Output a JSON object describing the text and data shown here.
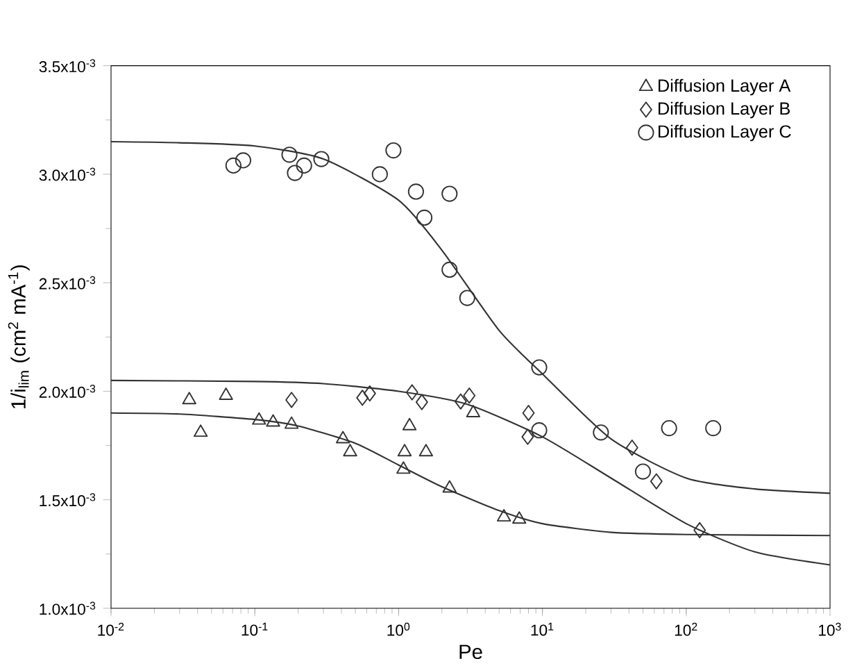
{
  "chart_data": {
    "type": "scatter",
    "xlabel": "Pe",
    "ylabel": "1/i$_{lim}$ (cm$^{2}$ mA$^{-1}$)",
    "log": "x",
    "legend": "top right",
    "xlim": [
      0.01,
      1000
    ],
    "ylim": [
      0.001,
      0.0035
    ],
    "xticks": [
      {
        "value": 0.01,
        "label": "10$^{-2}$"
      },
      {
        "value": 0.1,
        "label": "10$^{-1}$"
      },
      {
        "value": 1,
        "label": "10$^{0}$"
      },
      {
        "value": 10,
        "label": "10$^{1}$"
      },
      {
        "value": 100,
        "label": "10$^{2}$"
      },
      {
        "value": 1000,
        "label": "10$^{3}$"
      }
    ],
    "yticks": [
      {
        "value": 0.001,
        "label": "1.0x10$^{-3}$"
      },
      {
        "value": 0.0015,
        "label": "1.5x10$^{-3}$"
      },
      {
        "value": 0.002,
        "label": "2.0x10$^{-3}$"
      },
      {
        "value": 0.0025,
        "label": "2.5x10$^{-3}$"
      },
      {
        "value": 0.003,
        "label": "3.0x10$^{-3}$"
      },
      {
        "value": 0.0035,
        "label": "3.5x10$^{-3}$"
      }
    ],
    "series": [
      {
        "name": "Diffusion Layer A",
        "color": "#333333",
        "marker": "triangle",
        "x": [
          0.035,
          0.042,
          0.063,
          0.107,
          0.134,
          0.18,
          0.41,
          0.46,
          1.08,
          1.1,
          1.19,
          1.55,
          2.26,
          3.3,
          5.4,
          6.9
        ],
        "values": [
          0.00196,
          0.00181,
          0.00198,
          0.001866,
          0.001857,
          0.001847,
          0.00178,
          0.00172,
          0.00164,
          0.00172,
          0.00184,
          0.00172,
          0.001553,
          0.0019,
          0.00142,
          0.00141
        ]
      },
      {
        "name": "Diffusion Layer B",
        "color": "#333333",
        "marker": "diamond",
        "x": [
          0.18,
          0.56,
          0.63,
          1.24,
          1.45,
          2.7,
          3.1,
          8.0,
          7.9,
          42,
          62,
          124
        ],
        "values": [
          0.00196,
          0.00197,
          0.00199,
          0.001995,
          0.00195,
          0.001953,
          0.00198,
          0.0019,
          0.00179,
          0.00174,
          0.001585,
          0.00136
        ]
      },
      {
        "name": "Diffusion Layer C",
        "color": "#333333",
        "marker": "circle",
        "x": [
          0.071,
          0.083,
          0.174,
          0.19,
          0.22,
          0.29,
          0.74,
          0.92,
          1.32,
          1.51,
          2.26,
          2.26,
          3.0,
          9.5,
          9.5,
          25.5,
          50,
          76,
          154
        ],
        "values": [
          0.00304,
          0.003064,
          0.00309,
          0.003006,
          0.00304,
          0.00307,
          0.003,
          0.00311,
          0.00292,
          0.0028,
          0.00291,
          0.00256,
          0.00243,
          0.00211,
          0.00182,
          0.00181,
          0.00163,
          0.00183,
          0.00183
        ]
      },
      {
        "type": "line",
        "color": "#333333",
        "marker": "none",
        "x": [
          0.01,
          0.03,
          0.1,
          0.2,
          0.5,
          1,
          2,
          5,
          10,
          30,
          100,
          1000
        ],
        "values": [
          0.0019,
          0.001895,
          0.00187,
          0.00184,
          0.00176,
          0.00166,
          0.00156,
          0.00145,
          0.00139,
          0.00135,
          0.00134,
          0.001335
        ]
      },
      {
        "type": "line",
        "color": "#333333",
        "marker": "none",
        "x": [
          0.01,
          0.1,
          0.3,
          1,
          3,
          10,
          30,
          100,
          300,
          1000
        ],
        "values": [
          0.00205,
          0.002045,
          0.002035,
          0.002,
          0.00194,
          0.00179,
          0.0016,
          0.00139,
          0.00126,
          0.0012
        ]
      },
      {
        "type": "line",
        "color": "#333333",
        "marker": "none",
        "x": [
          0.01,
          0.03,
          0.1,
          0.3,
          1,
          2,
          5,
          10,
          30,
          100,
          300,
          1000
        ],
        "values": [
          0.00315,
          0.003145,
          0.00313,
          0.00307,
          0.00288,
          0.00265,
          0.00228,
          0.00208,
          0.00178,
          0.0016,
          0.00155,
          0.00153
        ]
      }
    ]
  }
}
